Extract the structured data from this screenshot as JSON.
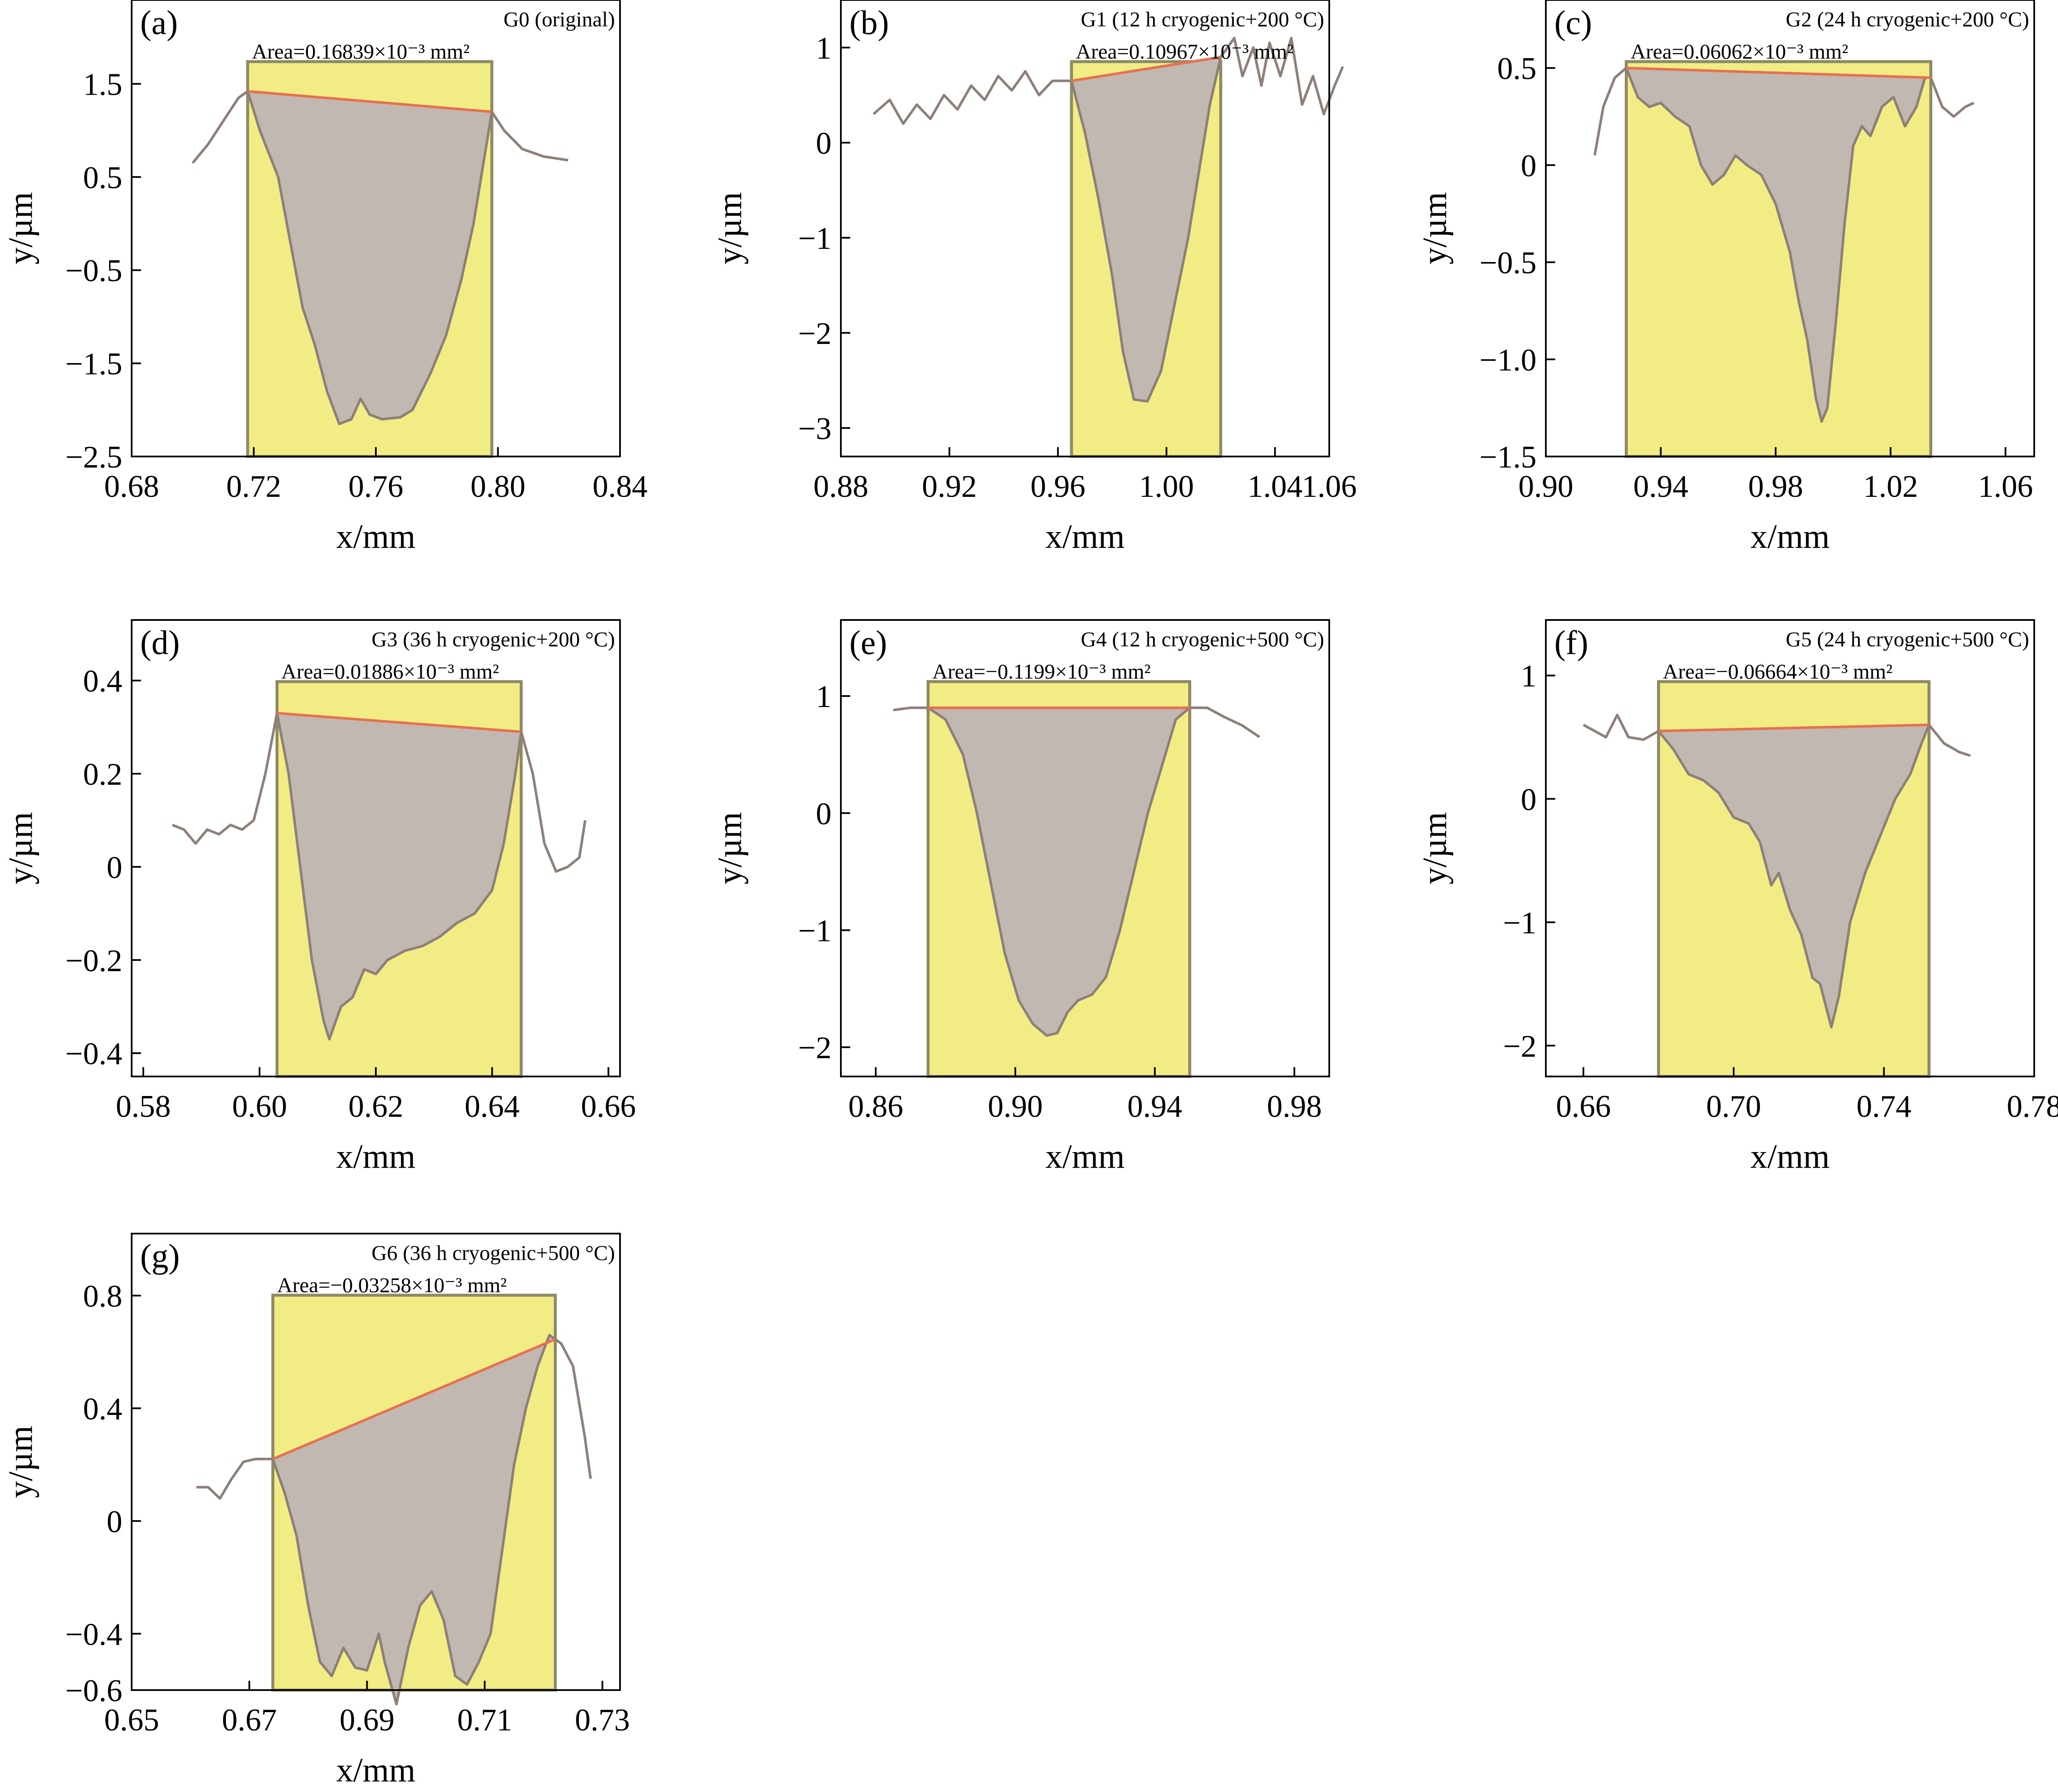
{
  "chart_data": [
    {
      "panel": "(a)",
      "type": "area",
      "title": "G0 (original)",
      "annotation": "Area=0.16839×10⁻³ mm²",
      "xlabel": "x/mm",
      "ylabel": "y/µm",
      "xlim": [
        0.68,
        0.84
      ],
      "ylim": [
        -2.5,
        2.4
      ],
      "xticks": [
        0.68,
        0.72,
        0.76,
        0.8,
        0.84
      ],
      "xtick_labels": [
        "0.68",
        "0.72",
        "0.76",
        "0.80",
        "0.84"
      ],
      "yticks": [
        1.5,
        0.5,
        -0.5,
        -1.5,
        -2.5
      ],
      "ytick_labels": [
        "1.5",
        "0.5",
        "−0.5",
        "−1.5",
        "−2.5"
      ],
      "region": [
        0.718,
        0.798
      ],
      "profile": [
        [
          0.7,
          0.65
        ],
        [
          0.705,
          0.85
        ],
        [
          0.71,
          1.1
        ],
        [
          0.715,
          1.35
        ],
        [
          0.718,
          1.42
        ],
        [
          0.722,
          1.0
        ],
        [
          0.728,
          0.5
        ],
        [
          0.732,
          -0.2
        ],
        [
          0.736,
          -0.9
        ],
        [
          0.74,
          -1.3
        ],
        [
          0.744,
          -1.8
        ],
        [
          0.748,
          -2.15
        ],
        [
          0.752,
          -2.1
        ],
        [
          0.755,
          -1.88
        ],
        [
          0.758,
          -2.05
        ],
        [
          0.762,
          -2.1
        ],
        [
          0.768,
          -2.08
        ],
        [
          0.772,
          -2.0
        ],
        [
          0.778,
          -1.6
        ],
        [
          0.783,
          -1.2
        ],
        [
          0.788,
          -0.6
        ],
        [
          0.792,
          0.0
        ],
        [
          0.796,
          0.8
        ],
        [
          0.798,
          1.2
        ],
        [
          0.802,
          1.0
        ],
        [
          0.808,
          0.8
        ],
        [
          0.815,
          0.72
        ],
        [
          0.823,
          0.68
        ]
      ]
    },
    {
      "panel": "(b)",
      "type": "area",
      "title": "G1 (12 h cryogenic+200 °C)",
      "annotation": "Area=0.10967×10⁻³ mm²",
      "xlabel": "x/mm",
      "ylabel": "y/µm",
      "xlim": [
        0.88,
        1.06
      ],
      "ylim": [
        -3.3,
        1.5
      ],
      "xticks": [
        0.88,
        0.92,
        0.96,
        1.0,
        1.04
      ],
      "xtick_labels": [
        "0.88",
        "0.92",
        "0.96",
        "1.00",
        "1.04"
      ],
      "extra_xtick_labels": [
        {
          "x": 1.06,
          "label": "1.06"
        }
      ],
      "yticks": [
        1,
        0,
        -1,
        -2,
        -3
      ],
      "ytick_labels": [
        "1",
        "0",
        "−1",
        "−2",
        "−3"
      ],
      "region": [
        0.965,
        1.02
      ],
      "profile": [
        [
          0.892,
          0.3
        ],
        [
          0.898,
          0.45
        ],
        [
          0.903,
          0.2
        ],
        [
          0.908,
          0.4
        ],
        [
          0.913,
          0.25
        ],
        [
          0.918,
          0.5
        ],
        [
          0.923,
          0.35
        ],
        [
          0.928,
          0.6
        ],
        [
          0.933,
          0.45
        ],
        [
          0.938,
          0.7
        ],
        [
          0.943,
          0.55
        ],
        [
          0.948,
          0.75
        ],
        [
          0.953,
          0.5
        ],
        [
          0.958,
          0.65
        ],
        [
          0.965,
          0.65
        ],
        [
          0.97,
          0.1
        ],
        [
          0.975,
          -0.6
        ],
        [
          0.98,
          -1.4
        ],
        [
          0.984,
          -2.2
        ],
        [
          0.988,
          -2.7
        ],
        [
          0.993,
          -2.72
        ],
        [
          0.998,
          -2.4
        ],
        [
          1.003,
          -1.7
        ],
        [
          1.008,
          -1.0
        ],
        [
          1.012,
          -0.3
        ],
        [
          1.016,
          0.4
        ],
        [
          1.02,
          0.9
        ],
        [
          1.025,
          1.1
        ],
        [
          1.028,
          0.7
        ],
        [
          1.032,
          1.0
        ],
        [
          1.035,
          0.6
        ],
        [
          1.038,
          1.05
        ],
        [
          1.042,
          0.7
        ],
        [
          1.046,
          1.1
        ],
        [
          1.05,
          0.4
        ],
        [
          1.054,
          0.7
        ],
        [
          1.058,
          0.3
        ],
        [
          1.062,
          0.6
        ],
        [
          1.065,
          0.8
        ]
      ]
    },
    {
      "panel": "(c)",
      "type": "area",
      "title": "G2 (24 h cryogenic+200 °C)",
      "annotation": "Area=0.06062×10⁻³ mm²",
      "xlabel": "x/mm",
      "ylabel": "y/µm",
      "xlim": [
        0.9,
        1.07
      ],
      "ylim": [
        -1.5,
        0.85
      ],
      "xticks": [
        0.9,
        0.94,
        0.98,
        1.02,
        1.06
      ],
      "xtick_labels": [
        "0.90",
        "0.94",
        "0.98",
        "1.02",
        "1.06"
      ],
      "yticks": [
        0.5,
        0,
        -0.5,
        -1.0,
        -1.5
      ],
      "ytick_labels": [
        "0.5",
        "0",
        "−0.5",
        "−1.0",
        "−1.5"
      ],
      "region": [
        0.928,
        1.034
      ],
      "profile": [
        [
          0.917,
          0.05
        ],
        [
          0.92,
          0.3
        ],
        [
          0.924,
          0.45
        ],
        [
          0.928,
          0.5
        ],
        [
          0.932,
          0.35
        ],
        [
          0.936,
          0.3
        ],
        [
          0.94,
          0.32
        ],
        [
          0.945,
          0.25
        ],
        [
          0.95,
          0.2
        ],
        [
          0.954,
          0.0
        ],
        [
          0.958,
          -0.1
        ],
        [
          0.962,
          -0.05
        ],
        [
          0.966,
          0.05
        ],
        [
          0.97,
          0.0
        ],
        [
          0.975,
          -0.05
        ],
        [
          0.98,
          -0.2
        ],
        [
          0.985,
          -0.45
        ],
        [
          0.988,
          -0.7
        ],
        [
          0.991,
          -0.9
        ],
        [
          0.994,
          -1.2
        ],
        [
          0.996,
          -1.32
        ],
        [
          0.998,
          -1.25
        ],
        [
          1.001,
          -0.8
        ],
        [
          1.004,
          -0.3
        ],
        [
          1.007,
          0.1
        ],
        [
          1.01,
          0.2
        ],
        [
          1.013,
          0.15
        ],
        [
          1.017,
          0.3
        ],
        [
          1.021,
          0.35
        ],
        [
          1.025,
          0.2
        ],
        [
          1.029,
          0.3
        ],
        [
          1.032,
          0.45
        ],
        [
          1.034,
          0.45
        ],
        [
          1.038,
          0.3
        ],
        [
          1.042,
          0.25
        ],
        [
          1.046,
          0.3
        ],
        [
          1.049,
          0.32
        ]
      ]
    },
    {
      "panel": "(d)",
      "type": "area",
      "title": "G3 (36 h cryogenic+200 °C)",
      "annotation": "Area=0.01886×10⁻³ mm²",
      "xlabel": "x/mm",
      "ylabel": "y/µm",
      "xlim": [
        0.578,
        0.662
      ],
      "ylim": [
        -0.45,
        0.53
      ],
      "xticks": [
        0.58,
        0.6,
        0.62,
        0.64,
        0.66
      ],
      "xtick_labels": [
        "0.58",
        "0.60",
        "0.62",
        "0.64",
        "0.66"
      ],
      "yticks": [
        0.4,
        0.2,
        0,
        -0.2,
        -0.4
      ],
      "ytick_labels": [
        "0.4",
        "0.2",
        "0",
        "−0.2",
        "−0.4"
      ],
      "region": [
        0.603,
        0.645
      ],
      "profile": [
        [
          0.585,
          0.09
        ],
        [
          0.587,
          0.08
        ],
        [
          0.589,
          0.05
        ],
        [
          0.591,
          0.08
        ],
        [
          0.593,
          0.07
        ],
        [
          0.595,
          0.09
        ],
        [
          0.597,
          0.08
        ],
        [
          0.599,
          0.1
        ],
        [
          0.601,
          0.2
        ],
        [
          0.603,
          0.33
        ],
        [
          0.605,
          0.2
        ],
        [
          0.607,
          0.0
        ],
        [
          0.609,
          -0.2
        ],
        [
          0.611,
          -0.33
        ],
        [
          0.612,
          -0.37
        ],
        [
          0.614,
          -0.3
        ],
        [
          0.616,
          -0.28
        ],
        [
          0.618,
          -0.22
        ],
        [
          0.62,
          -0.23
        ],
        [
          0.622,
          -0.2
        ],
        [
          0.625,
          -0.18
        ],
        [
          0.628,
          -0.17
        ],
        [
          0.631,
          -0.15
        ],
        [
          0.634,
          -0.12
        ],
        [
          0.637,
          -0.1
        ],
        [
          0.64,
          -0.05
        ],
        [
          0.642,
          0.05
        ],
        [
          0.644,
          0.2
        ],
        [
          0.645,
          0.29
        ],
        [
          0.647,
          0.2
        ],
        [
          0.649,
          0.05
        ],
        [
          0.651,
          -0.01
        ],
        [
          0.653,
          0.0
        ],
        [
          0.655,
          0.02
        ],
        [
          0.656,
          0.1
        ]
      ]
    },
    {
      "panel": "(e)",
      "type": "area",
      "title": "G4 (12 h cryogenic+500 °C)",
      "annotation": "Area=−0.1199×10⁻³ mm²",
      "xlabel": "x/mm",
      "ylabel": "y/µm",
      "xlim": [
        0.85,
        0.99
      ],
      "ylim": [
        -2.25,
        1.65
      ],
      "xticks": [
        0.86,
        0.9,
        0.94,
        0.98
      ],
      "xtick_labels": [
        "0.86",
        "0.90",
        "0.94",
        "0.98"
      ],
      "yticks": [
        1,
        0,
        -1,
        -2
      ],
      "ytick_labels": [
        "1",
        "0",
        "−1",
        "−2"
      ],
      "region": [
        0.875,
        0.95
      ],
      "profile": [
        [
          0.865,
          0.88
        ],
        [
          0.87,
          0.9
        ],
        [
          0.875,
          0.9
        ],
        [
          0.88,
          0.8
        ],
        [
          0.885,
          0.5
        ],
        [
          0.889,
          0.0
        ],
        [
          0.893,
          -0.6
        ],
        [
          0.897,
          -1.2
        ],
        [
          0.901,
          -1.6
        ],
        [
          0.905,
          -1.8
        ],
        [
          0.909,
          -1.9
        ],
        [
          0.912,
          -1.88
        ],
        [
          0.915,
          -1.7
        ],
        [
          0.918,
          -1.6
        ],
        [
          0.922,
          -1.55
        ],
        [
          0.926,
          -1.4
        ],
        [
          0.93,
          -1.0
        ],
        [
          0.934,
          -0.5
        ],
        [
          0.938,
          0.0
        ],
        [
          0.942,
          0.4
        ],
        [
          0.946,
          0.8
        ],
        [
          0.95,
          0.9
        ],
        [
          0.955,
          0.9
        ],
        [
          0.96,
          0.82
        ],
        [
          0.965,
          0.75
        ],
        [
          0.97,
          0.65
        ]
      ]
    },
    {
      "panel": "(f)",
      "type": "area",
      "title": "G5 (24 h cryogenic+500 °C)",
      "annotation": "Area=−0.06664×10⁻³ mm²",
      "xlabel": "x/mm",
      "ylabel": "y/µm",
      "xlim": [
        0.65,
        0.78
      ],
      "ylim": [
        -2.25,
        1.45
      ],
      "xticks": [
        0.66,
        0.7,
        0.74,
        0.78
      ],
      "xtick_labels": [
        "0.66",
        "0.70",
        "0.74",
        "0.78"
      ],
      "yticks": [
        1,
        0,
        -1,
        -2
      ],
      "ytick_labels": [
        "1",
        "0",
        "−1",
        "−2"
      ],
      "region": [
        0.68,
        0.752
      ],
      "profile": [
        [
          0.66,
          0.6
        ],
        [
          0.663,
          0.55
        ],
        [
          0.666,
          0.5
        ],
        [
          0.669,
          0.68
        ],
        [
          0.672,
          0.5
        ],
        [
          0.676,
          0.48
        ],
        [
          0.68,
          0.55
        ],
        [
          0.684,
          0.4
        ],
        [
          0.688,
          0.2
        ],
        [
          0.692,
          0.15
        ],
        [
          0.696,
          0.05
        ],
        [
          0.7,
          -0.15
        ],
        [
          0.704,
          -0.2
        ],
        [
          0.707,
          -0.35
        ],
        [
          0.71,
          -0.7
        ],
        [
          0.712,
          -0.6
        ],
        [
          0.715,
          -0.9
        ],
        [
          0.718,
          -1.1
        ],
        [
          0.721,
          -1.45
        ],
        [
          0.723,
          -1.5
        ],
        [
          0.726,
          -1.85
        ],
        [
          0.728,
          -1.6
        ],
        [
          0.731,
          -1.0
        ],
        [
          0.735,
          -0.6
        ],
        [
          0.739,
          -0.3
        ],
        [
          0.743,
          0.0
        ],
        [
          0.747,
          0.2
        ],
        [
          0.75,
          0.45
        ],
        [
          0.752,
          0.6
        ],
        [
          0.756,
          0.45
        ],
        [
          0.76,
          0.38
        ],
        [
          0.763,
          0.35
        ]
      ]
    },
    {
      "panel": "(g)",
      "type": "area",
      "title": "G6 (36 h cryogenic+500 °C)",
      "annotation": "Area=−0.03258×10⁻³ mm²",
      "xlabel": "x/mm",
      "ylabel": "y/µm",
      "xlim": [
        0.65,
        0.733
      ],
      "ylim": [
        -0.6,
        1.02
      ],
      "xticks": [
        0.65,
        0.67,
        0.69,
        0.71,
        0.73
      ],
      "xtick_labels": [
        "0.65",
        "0.67",
        "0.69",
        "0.71",
        "0.73"
      ],
      "yticks": [
        0.8,
        0.4,
        0,
        -0.4,
        -0.6
      ],
      "ytick_labels": [
        "0.8",
        "0.4",
        "0",
        "−0.4",
        "−0.6"
      ],
      "region": [
        0.674,
        0.722
      ],
      "profile": [
        [
          0.661,
          0.12
        ],
        [
          0.663,
          0.12
        ],
        [
          0.665,
          0.08
        ],
        [
          0.667,
          0.15
        ],
        [
          0.669,
          0.21
        ],
        [
          0.671,
          0.22
        ],
        [
          0.674,
          0.22
        ],
        [
          0.676,
          0.1
        ],
        [
          0.678,
          -0.05
        ],
        [
          0.68,
          -0.3
        ],
        [
          0.682,
          -0.5
        ],
        [
          0.684,
          -0.55
        ],
        [
          0.686,
          -0.45
        ],
        [
          0.688,
          -0.52
        ],
        [
          0.69,
          -0.53
        ],
        [
          0.692,
          -0.4
        ],
        [
          0.693,
          -0.5
        ],
        [
          0.695,
          -0.65
        ],
        [
          0.697,
          -0.45
        ],
        [
          0.699,
          -0.3
        ],
        [
          0.701,
          -0.25
        ],
        [
          0.703,
          -0.35
        ],
        [
          0.705,
          -0.55
        ],
        [
          0.707,
          -0.58
        ],
        [
          0.709,
          -0.5
        ],
        [
          0.711,
          -0.4
        ],
        [
          0.713,
          -0.1
        ],
        [
          0.715,
          0.2
        ],
        [
          0.717,
          0.4
        ],
        [
          0.719,
          0.55
        ],
        [
          0.721,
          0.66
        ],
        [
          0.723,
          0.63
        ],
        [
          0.725,
          0.55
        ],
        [
          0.727,
          0.3
        ],
        [
          0.728,
          0.15
        ]
      ]
    }
  ],
  "colors": {
    "region_fill": "#f2ec84",
    "region_border": "#8e8a66",
    "pit_fill": "#c2b8b2",
    "profile_line": "#8c8078",
    "baseline": "#e8704e",
    "axes": "#000000"
  }
}
